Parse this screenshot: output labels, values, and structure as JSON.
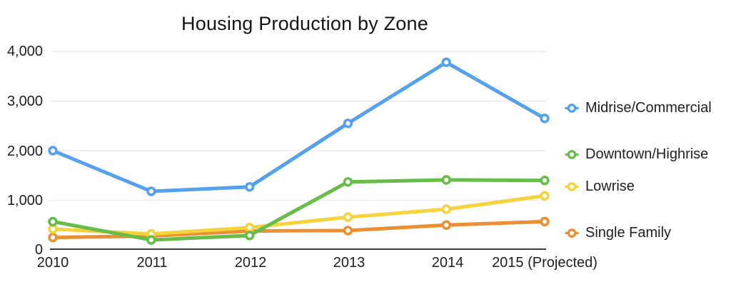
{
  "chart_data": {
    "type": "line",
    "title": "Housing Production by Zone",
    "categories": [
      "2010",
      "2011",
      "2012",
      "2013",
      "2014",
      "2015 (Projected)"
    ],
    "y_ticks_top_to_bottom": [
      "4,000",
      "3,000",
      "2,000",
      "1,000",
      "0"
    ],
    "ylim": [
      0,
      4000
    ],
    "grid": true,
    "legend_position": "right",
    "colors": {
      "gridline": "#ebebeb",
      "axis": "#3f3f3f",
      "text": "#1f1f1f"
    },
    "series": [
      {
        "name": "Midrise/Commercial",
        "color": "#55A1EB",
        "values": [
          2000,
          1180,
          1270,
          2550,
          3780,
          2650
        ]
      },
      {
        "name": "Downtown/Highrise",
        "color": "#68BD4A",
        "values": [
          570,
          200,
          290,
          1370,
          1410,
          1400
        ]
      },
      {
        "name": "Lowrise",
        "color": "#F5D33D",
        "values": [
          420,
          320,
          450,
          660,
          820,
          1090
        ]
      },
      {
        "name": "Single Family",
        "color": "#EA9033",
        "values": [
          250,
          280,
          380,
          390,
          500,
          570
        ]
      }
    ]
  }
}
